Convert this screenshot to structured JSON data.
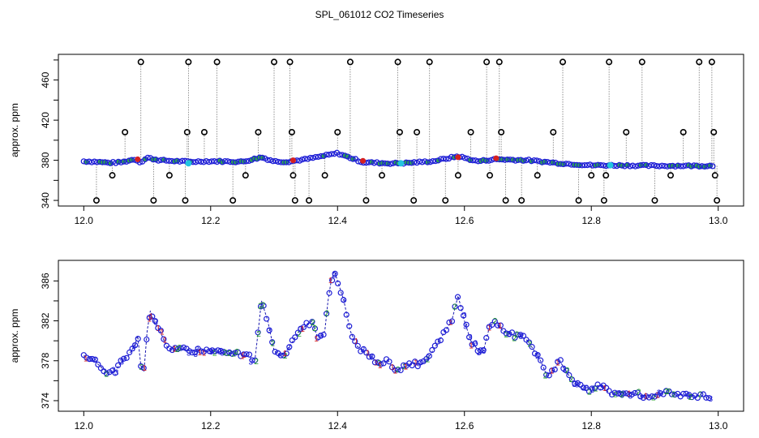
{
  "title": "SPL_061012  CO2 Timeseries",
  "colors": {
    "baseline_ring": "#1f1fd6",
    "baseline_fill_alt": "#2ea84e",
    "flag_red": "#d62020",
    "flag_cyan": "#22c4e0",
    "spike_ring": "#000000",
    "spike_line": "#777777",
    "digit_1": "#d62020",
    "digit_2": "#20a020",
    "digit_3": "#2020d6",
    "trend_line": "#1a1ab0"
  },
  "chart_data": [
    {
      "type": "scatter",
      "ylabel": "approx. ppm",
      "xlim": [
        12.0,
        13.0
      ],
      "ylim": [
        340,
        480
      ],
      "x_ticks": [
        12.0,
        12.2,
        12.4,
        12.6,
        12.8,
        13.0
      ],
      "x_tick_labels": [
        "12.0",
        "12.2",
        "12.4",
        "12.6",
        "12.8",
        "13.0"
      ],
      "y_ticks": [
        340,
        380,
        420,
        460
      ],
      "y_tick_labels": [
        "340",
        "380",
        "420",
        "460"
      ],
      "minor_y_ticks": [
        360,
        400,
        440,
        480
      ],
      "baseline": [
        [
          12.0,
          379
        ],
        [
          12.02,
          378.5
        ],
        [
          12.04,
          377.5
        ],
        [
          12.06,
          378
        ],
        [
          12.08,
          381
        ],
        [
          12.09,
          378
        ],
        [
          12.1,
          382.5
        ],
        [
          12.12,
          380
        ],
        [
          12.15,
          379
        ],
        [
          12.17,
          378.5
        ],
        [
          12.19,
          379
        ],
        [
          12.21,
          379
        ],
        [
          12.25,
          378.5
        ],
        [
          12.28,
          383
        ],
        [
          12.3,
          379
        ],
        [
          12.32,
          378.5
        ],
        [
          12.35,
          381
        ],
        [
          12.4,
          387
        ],
        [
          12.44,
          378
        ],
        [
          12.48,
          377
        ],
        [
          12.5,
          377
        ],
        [
          12.55,
          379
        ],
        [
          12.59,
          384
        ],
        [
          12.62,
          379
        ],
        [
          12.65,
          381
        ],
        [
          12.7,
          380
        ],
        [
          12.75,
          377
        ],
        [
          12.8,
          375
        ],
        [
          12.83,
          375
        ],
        [
          12.9,
          374.5
        ],
        [
          12.99,
          374.5
        ]
      ],
      "spikes": [
        [
          12.02,
          340
        ],
        [
          12.045,
          365
        ],
        [
          12.065,
          408
        ],
        [
          12.09,
          478
        ],
        [
          12.11,
          340
        ],
        [
          12.135,
          365
        ],
        [
          12.16,
          340
        ],
        [
          12.163,
          408
        ],
        [
          12.165,
          478
        ],
        [
          12.19,
          408
        ],
        [
          12.21,
          478
        ],
        [
          12.235,
          340
        ],
        [
          12.255,
          365
        ],
        [
          12.275,
          408
        ],
        [
          12.3,
          478
        ],
        [
          12.325,
          478
        ],
        [
          12.328,
          408
        ],
        [
          12.33,
          365
        ],
        [
          12.333,
          340
        ],
        [
          12.355,
          340
        ],
        [
          12.38,
          365
        ],
        [
          12.4,
          408
        ],
        [
          12.42,
          478
        ],
        [
          12.445,
          340
        ],
        [
          12.47,
          365
        ],
        [
          12.495,
          478
        ],
        [
          12.498,
          408
        ],
        [
          12.52,
          340
        ],
        [
          12.525,
          408
        ],
        [
          12.545,
          478
        ],
        [
          12.57,
          340
        ],
        [
          12.59,
          365
        ],
        [
          12.61,
          408
        ],
        [
          12.635,
          478
        ],
        [
          12.64,
          365
        ],
        [
          12.655,
          478
        ],
        [
          12.658,
          408
        ],
        [
          12.665,
          340
        ],
        [
          12.69,
          340
        ],
        [
          12.715,
          365
        ],
        [
          12.74,
          408
        ],
        [
          12.755,
          478
        ],
        [
          12.78,
          340
        ],
        [
          12.8,
          365
        ],
        [
          12.82,
          340
        ],
        [
          12.823,
          365
        ],
        [
          12.828,
          478
        ],
        [
          12.855,
          408
        ],
        [
          12.88,
          478
        ],
        [
          12.9,
          340
        ],
        [
          12.925,
          365
        ],
        [
          12.945,
          408
        ],
        [
          12.97,
          478
        ],
        [
          12.99,
          478
        ],
        [
          12.993,
          408
        ],
        [
          12.995,
          365
        ],
        [
          12.998,
          340
        ]
      ],
      "red_flags": [
        [
          12.085,
          381
        ],
        [
          12.33,
          380
        ],
        [
          12.44,
          379.5
        ],
        [
          12.59,
          383
        ],
        [
          12.65,
          382
        ]
      ],
      "cyan_flags": [
        [
          12.165,
          377
        ],
        [
          12.5,
          377
        ],
        [
          12.83,
          375
        ]
      ]
    },
    {
      "type": "scatter",
      "ylabel": "approx. ppm",
      "xlim": [
        12.0,
        13.0
      ],
      "ylim": [
        373.5,
        387.5
      ],
      "x_ticks": [
        12.0,
        12.2,
        12.4,
        12.6,
        12.8,
        13.0
      ],
      "x_tick_labels": [
        "12.0",
        "12.2",
        "12.4",
        "12.6",
        "12.8",
        "13.0"
      ],
      "y_ticks": [
        374,
        378,
        382,
        386
      ],
      "y_tick_labels": [
        "374",
        "378",
        "382",
        "386"
      ],
      "minor_y_ticks": [
        376,
        380,
        384
      ],
      "series": [
        [
          12.0,
          378.5
        ],
        [
          12.01,
          378.3
        ],
        [
          12.02,
          377.8
        ],
        [
          12.03,
          377.2
        ],
        [
          12.04,
          376.8
        ],
        [
          12.05,
          377
        ],
        [
          12.06,
          378
        ],
        [
          12.07,
          378.5
        ],
        [
          12.08,
          379.5
        ],
        [
          12.085,
          380.5
        ],
        [
          12.09,
          377.5
        ],
        [
          12.095,
          377
        ],
        [
          12.1,
          381
        ],
        [
          12.105,
          383
        ],
        [
          12.11,
          382
        ],
        [
          12.12,
          381
        ],
        [
          12.13,
          379.5
        ],
        [
          12.14,
          379
        ],
        [
          12.15,
          379.2
        ],
        [
          12.165,
          379
        ],
        [
          12.18,
          379.1
        ],
        [
          12.2,
          379
        ],
        [
          12.22,
          378.8
        ],
        [
          12.24,
          378.7
        ],
        [
          12.26,
          378.4
        ],
        [
          12.27,
          378.2
        ],
        [
          12.275,
          381
        ],
        [
          12.28,
          384
        ],
        [
          12.29,
          382
        ],
        [
          12.3,
          379
        ],
        [
          12.31,
          378.5
        ],
        [
          12.32,
          379
        ],
        [
          12.33,
          380
        ],
        [
          12.34,
          381
        ],
        [
          12.35,
          381.5
        ],
        [
          12.36,
          382
        ],
        [
          12.37,
          380
        ],
        [
          12.38,
          381
        ],
        [
          12.385,
          384
        ],
        [
          12.39,
          386
        ],
        [
          12.395,
          387
        ],
        [
          12.4,
          386
        ],
        [
          12.41,
          384
        ],
        [
          12.42,
          381
        ],
        [
          12.43,
          379.5
        ],
        [
          12.44,
          379
        ],
        [
          12.45,
          378.5
        ],
        [
          12.46,
          378
        ],
        [
          12.47,
          377.8
        ],
        [
          12.48,
          378
        ],
        [
          12.49,
          377
        ],
        [
          12.5,
          377.2
        ],
        [
          12.51,
          377.5
        ],
        [
          12.52,
          377.8
        ],
        [
          12.53,
          377.6
        ],
        [
          12.54,
          378
        ],
        [
          12.55,
          379
        ],
        [
          12.56,
          380
        ],
        [
          12.57,
          381
        ],
        [
          12.58,
          382
        ],
        [
          12.59,
          384.5
        ],
        [
          12.6,
          382
        ],
        [
          12.61,
          380
        ],
        [
          12.62,
          379.2
        ],
        [
          12.63,
          379
        ],
        [
          12.64,
          381.5
        ],
        [
          12.65,
          382
        ],
        [
          12.66,
          381
        ],
        [
          12.67,
          380.8
        ],
        [
          12.68,
          380.5
        ],
        [
          12.69,
          380.4
        ],
        [
          12.7,
          380
        ],
        [
          12.71,
          379
        ],
        [
          12.72,
          378
        ],
        [
          12.73,
          376.5
        ],
        [
          12.74,
          377
        ],
        [
          12.75,
          378
        ],
        [
          12.76,
          377
        ],
        [
          12.77,
          376
        ],
        [
          12.78,
          375.5
        ],
        [
          12.79,
          375
        ],
        [
          12.8,
          375.2
        ],
        [
          12.81,
          375.5
        ],
        [
          12.82,
          375.4
        ],
        [
          12.83,
          374.6
        ],
        [
          12.84,
          374.8
        ],
        [
          12.86,
          374.7
        ],
        [
          12.88,
          374.5
        ],
        [
          12.9,
          374.6
        ],
        [
          12.92,
          374.8
        ],
        [
          12.94,
          374.6
        ],
        [
          12.96,
          374.5
        ],
        [
          12.98,
          374.4
        ],
        [
          12.99,
          374.2
        ]
      ]
    }
  ]
}
